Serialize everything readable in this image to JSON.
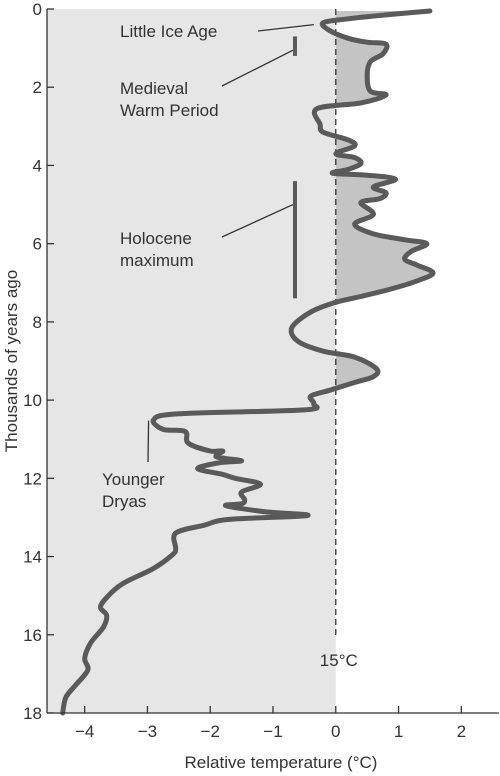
{
  "chart_data": {
    "type": "line",
    "title": "",
    "xlabel": "Relative temperature (°C)",
    "ylabel": "Thousands of years ago",
    "xlim": [
      -4.6,
      2.6
    ],
    "ylim": [
      0,
      18
    ],
    "y_inverted": true,
    "x_ticks": [
      -4,
      -3,
      -2,
      -1,
      0,
      1,
      2
    ],
    "x_tick_labels": [
      "−4",
      "−3",
      "−2",
      "−1",
      "0",
      "1",
      "2"
    ],
    "y_ticks": [
      0,
      2,
      4,
      6,
      8,
      10,
      12,
      14,
      16,
      18
    ],
    "y_tick_labels": [
      "0",
      "2",
      "4",
      "6",
      "8",
      "10",
      "12",
      "14",
      "16",
      "18"
    ],
    "grid": false,
    "reference_line": {
      "x": 0,
      "label": "15°C",
      "style": "dashed"
    },
    "shading": "area between curve and 0 where temperature > 0 is shaded gray",
    "colors": {
      "line": "#5a5a5a",
      "shade_positive": "#c4c4c4",
      "background_left": "#e6e6e6"
    },
    "series": [
      {
        "x": [
          1.5,
          0.8,
          0.2,
          -0.2,
          -0.1,
          0.2,
          0.5,
          0.8,
          0.75,
          0.55,
          0.5,
          0.55,
          0.8,
          0.4,
          -0.3,
          -0.25,
          -0.2,
          0.2,
          0.3,
          0.0,
          0.3,
          0.4,
          0.2,
          -0.05,
          0.5,
          0.95,
          0.6,
          0.8,
          0.7,
          0.4,
          0.6,
          0.3,
          0.6,
          1.1,
          1.45,
          1.2,
          1.1,
          1.3,
          1.55,
          1.3,
          0.9,
          0.4,
          0.0,
          -0.4,
          -0.7,
          -0.6,
          -0.2,
          0.3,
          0.65,
          0.6,
          0.3,
          -0.1,
          -0.4,
          -0.35,
          -0.5,
          -2.5,
          -2.9,
          -2.75,
          -2.4,
          -2.35,
          -2.0,
          -1.8,
          -1.9,
          -1.5,
          -1.85,
          -2.2,
          -1.8,
          -1.6,
          -1.2,
          -1.5,
          -1.45,
          -1.5,
          -1.75,
          -1.15,
          -0.45,
          -1.7,
          -2.1,
          -2.55,
          -2.55,
          -2.6,
          -2.9,
          -3.4,
          -3.65,
          -3.75,
          -3.65,
          -3.7,
          -3.9,
          -4.0,
          -3.95,
          -4.15,
          -4.3,
          -4.35
        ],
        "y": [
          0.05,
          0.15,
          0.25,
          0.35,
          0.55,
          0.75,
          0.85,
          0.9,
          1.15,
          1.35,
          1.7,
          2.1,
          2.2,
          2.4,
          2.55,
          2.95,
          3.15,
          3.35,
          3.5,
          3.7,
          3.8,
          3.95,
          4.1,
          4.2,
          4.25,
          4.35,
          4.55,
          4.7,
          4.85,
          4.95,
          5.25,
          5.5,
          5.75,
          5.9,
          6.0,
          6.2,
          6.4,
          6.55,
          6.75,
          6.95,
          7.15,
          7.35,
          7.5,
          7.75,
          8.15,
          8.5,
          8.75,
          8.9,
          9.2,
          9.4,
          9.55,
          9.75,
          9.9,
          10.1,
          10.25,
          10.35,
          10.5,
          10.75,
          10.8,
          11.1,
          11.3,
          11.3,
          11.45,
          11.55,
          11.6,
          11.75,
          11.9,
          12.0,
          12.15,
          12.35,
          12.55,
          12.65,
          12.7,
          12.85,
          12.95,
          13.05,
          13.2,
          13.4,
          13.8,
          13.95,
          14.3,
          14.7,
          15.05,
          15.3,
          15.5,
          15.8,
          16.2,
          16.6,
          16.9,
          17.3,
          17.6,
          18.0
        ]
      }
    ],
    "annotations": [
      {
        "id": "little-ice-age",
        "lines": [
          "Little Ice Age"
        ],
        "x": -0.35,
        "y": 0.4
      },
      {
        "id": "medieval-warm-period",
        "lines": [
          "Medieval",
          "Warm Period"
        ],
        "x": -0.65,
        "y": [
          0.7,
          1.2
        ]
      },
      {
        "id": "holocene-maximum",
        "lines": [
          "Holocene",
          "maximum"
        ],
        "x": -0.65,
        "y": [
          4.4,
          7.4
        ]
      },
      {
        "id": "younger-dryas",
        "lines": [
          "Younger",
          "Dryas"
        ],
        "x": -2.95,
        "y": 10.5
      }
    ]
  }
}
